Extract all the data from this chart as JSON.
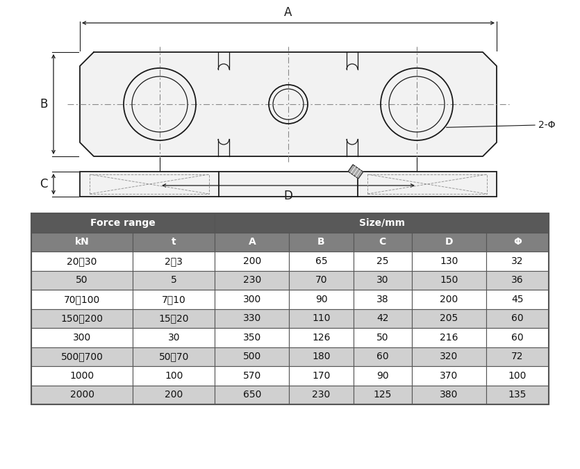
{
  "bg_color": "#ffffff",
  "line_color": "#1a1a1a",
  "dash_color": "#666666",
  "table_header_bg": "#595959",
  "table_subheader_bg": "#808080",
  "table_odd_bg": "#ffffff",
  "table_even_bg": "#d0d0d0",
  "table_border": "#555555",
  "table_text_white": "#ffffff",
  "table_text_black": "#111111",
  "force_range_col1": [
    "20∰30",
    "50",
    "70∰10 0",
    "150∰200",
    "300",
    "500∰700",
    "1000",
    "2000"
  ],
  "force_range_col2": [
    "2∰3",
    "5",
    "7∰10",
    "15∰20",
    "30",
    "50∰70",
    "100",
    "200"
  ],
  "size_A": [
    "200",
    "230",
    "300",
    "330",
    "350",
    "500",
    "570",
    "650"
  ],
  "size_B": [
    "65",
    "70",
    "90",
    "110",
    "126",
    "180",
    "170",
    "230"
  ],
  "size_C": [
    "25",
    "30",
    "38",
    "42",
    "50",
    "60",
    "90",
    "125"
  ],
  "size_D": [
    "130",
    "150",
    "200",
    "205",
    "216",
    "320",
    "370",
    "380"
  ],
  "size_Phi": [
    "32",
    "36",
    "45",
    "60",
    "60",
    "72",
    "100",
    "135"
  ],
  "dim_label_A": "A",
  "dim_label_B": "B",
  "dim_label_C": "C",
  "dim_label_D": "D",
  "dim_label_2phi": "2-Φ",
  "header_force": "Force range",
  "header_size": "Size/mm",
  "col_kN": "kN",
  "col_t": "t",
  "col_A": "A",
  "col_B": "B",
  "col_C": "C",
  "col_D": "D",
  "col_Phi": "Φ",
  "fr_col1": [
    "20～30",
    "50",
    "70～100",
    "150～200",
    "300",
    "500～700",
    "1000",
    "2000"
  ],
  "fr_col2": [
    "2～3",
    "5",
    "7～10",
    "15～20",
    "30",
    "50～70",
    "100",
    "200"
  ]
}
